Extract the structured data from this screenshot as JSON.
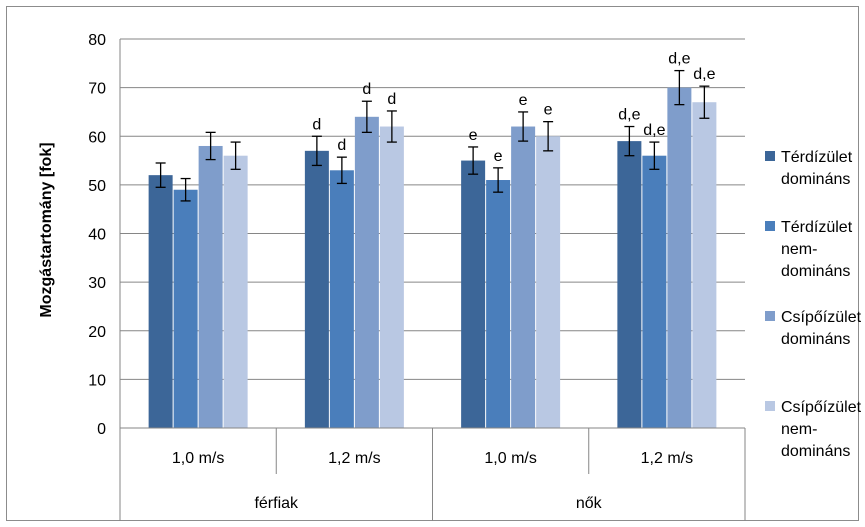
{
  "chart_data": {
    "type": "bar",
    "title": "",
    "ylabel": "Mozgástartomány [fok]",
    "xlabel": "",
    "ylim": [
      0,
      80
    ],
    "yticks": [
      0,
      10,
      20,
      30,
      40,
      50,
      60,
      70,
      80
    ],
    "grid": true,
    "legend_position": "right",
    "groups": [
      {
        "label": "férfiak",
        "categories": [
          "1,0 m/s",
          "1,2 m/s"
        ]
      },
      {
        "label": "nők",
        "categories": [
          "1,0 m/s",
          "1,2 m/s"
        ]
      }
    ],
    "series": [
      {
        "name": "Térdízület domináns",
        "color": "#3C6698",
        "values": [
          52,
          57,
          55,
          59
        ],
        "errors": [
          2.5,
          3,
          2.8,
          3
        ],
        "labels": [
          "",
          "d",
          "e",
          "d,e"
        ]
      },
      {
        "name": "Térdízület nem-domináns",
        "color": "#4A7EBB",
        "values": [
          49,
          53,
          51,
          56
        ],
        "errors": [
          2.3,
          2.7,
          2.5,
          2.8
        ],
        "labels": [
          "",
          "d",
          "e",
          "d,e"
        ]
      },
      {
        "name": "Csípőízület domináns",
        "color": "#7F9DCB",
        "values": [
          58,
          64,
          62,
          70
        ],
        "errors": [
          2.8,
          3.2,
          3,
          3.5
        ],
        "labels": [
          "",
          "d",
          "e",
          "d,e"
        ]
      },
      {
        "name": "Csípőízület nem-domináns",
        "color": "#B9C8E3",
        "values": [
          56,
          62,
          60,
          67
        ],
        "errors": [
          2.8,
          3.2,
          3,
          3.3
        ],
        "labels": [
          "",
          "d",
          "e",
          "d,e"
        ]
      }
    ]
  },
  "legend_lines": [
    [
      "Térdízület",
      "domináns"
    ],
    [
      "Térdízület",
      "nem-",
      "domináns"
    ],
    [
      "Csípőízület",
      "domináns"
    ],
    [
      "Csípőízület",
      "nem-",
      "domináns"
    ]
  ]
}
